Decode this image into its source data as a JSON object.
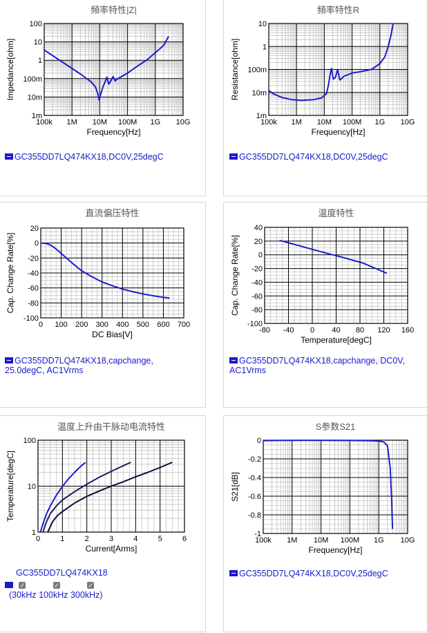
{
  "chart_data": [
    {
      "id": "impedance",
      "type": "line",
      "title": "頻率特性|Z|",
      "xlabel": "Frequency[Hz]",
      "ylabel": "Impedance[ohm]",
      "xscale": "log",
      "yscale": "log",
      "xlim": [
        100000,
        10000000000
      ],
      "ylim": [
        0.001,
        100
      ],
      "xticks": [
        [
          100000,
          "100k"
        ],
        [
          1000000,
          "1M"
        ],
        [
          10000000,
          "10M"
        ],
        [
          100000000,
          "100M"
        ],
        [
          1000000000,
          "1G"
        ],
        [
          10000000000,
          "10G"
        ]
      ],
      "yticks": [
        [
          0.001,
          "1m"
        ],
        [
          0.01,
          "10m"
        ],
        [
          0.1,
          "100m"
        ],
        [
          1,
          "1"
        ],
        [
          10,
          "10"
        ],
        [
          100,
          "100"
        ]
      ],
      "series": [
        {
          "color": "#1a1acc",
          "x": [
            100000,
            200000,
            500000,
            1000000,
            2000000,
            5000000,
            7000000,
            8500000,
            9500000,
            11000000,
            13000000,
            16000000,
            18000000,
            21000000,
            25000000,
            30000000,
            36000000,
            42000000,
            50000000,
            100000000,
            200000000,
            500000000,
            1000000000,
            2000000000,
            3000000000
          ],
          "y": [
            3.6,
            1.8,
            0.72,
            0.36,
            0.18,
            0.065,
            0.035,
            0.015,
            0.007,
            0.016,
            0.035,
            0.075,
            0.12,
            0.05,
            0.075,
            0.13,
            0.075,
            0.095,
            0.11,
            0.2,
            0.42,
            1.05,
            2.6,
            6.5,
            20
          ]
        }
      ],
      "legend": "GC355DD7LQ474KX18,DC0V,25degC"
    },
    {
      "id": "resistance",
      "type": "line",
      "title": "頻率特性R",
      "xlabel": "Frequency[Hz]",
      "ylabel": "Resistance[ohm]",
      "xscale": "log",
      "yscale": "log",
      "xlim": [
        100000,
        10000000000
      ],
      "ylim": [
        0.001,
        10
      ],
      "xticks": [
        [
          100000,
          "100k"
        ],
        [
          1000000,
          "1M"
        ],
        [
          10000000,
          "10M"
        ],
        [
          100000000,
          "100M"
        ],
        [
          1000000000,
          "1G"
        ],
        [
          10000000000,
          "10G"
        ]
      ],
      "yticks": [
        [
          0.001,
          "1m"
        ],
        [
          0.01,
          "10m"
        ],
        [
          0.1,
          "100m"
        ],
        [
          1,
          "1"
        ],
        [
          10,
          "10"
        ]
      ],
      "series": [
        {
          "color": "#1a1acc",
          "x": [
            100000,
            150000,
            300000,
            700000,
            1500000,
            4000000,
            8000000,
            12000000,
            14000000,
            16000000,
            18000000,
            21000000,
            25000000,
            30000000,
            36000000,
            42000000,
            50000000,
            100000000,
            200000000,
            500000000,
            1000000000,
            1500000000,
            2000000000,
            2500000000,
            3000000000
          ],
          "y": [
            0.012,
            0.0085,
            0.006,
            0.0048,
            0.0045,
            0.0048,
            0.0058,
            0.009,
            0.02,
            0.055,
            0.11,
            0.038,
            0.045,
            0.1,
            0.035,
            0.04,
            0.05,
            0.07,
            0.08,
            0.1,
            0.18,
            0.35,
            1.0,
            3.0,
            10
          ]
        }
      ],
      "legend": "GC355DD7LQ474KX18,DC0V,25degC"
    },
    {
      "id": "dcbias",
      "type": "line",
      "title": "直流偏压特性",
      "xlabel": "DC Bias[V]",
      "ylabel": "Cap. Change Rate[%]",
      "xscale": "linear",
      "yscale": "linear",
      "xlim": [
        0,
        700
      ],
      "ylim": [
        -100,
        20
      ],
      "xticks": [
        [
          0,
          "0"
        ],
        [
          100,
          "100"
        ],
        [
          200,
          "200"
        ],
        [
          300,
          "300"
        ],
        [
          400,
          "400"
        ],
        [
          500,
          "500"
        ],
        [
          600,
          "600"
        ],
        [
          700,
          "700"
        ]
      ],
      "yticks": [
        [
          -100,
          "-100"
        ],
        [
          -80,
          "-80"
        ],
        [
          -60,
          "-60"
        ],
        [
          -40,
          "-40"
        ],
        [
          -20,
          "-20"
        ],
        [
          0,
          "0"
        ],
        [
          20,
          "20"
        ]
      ],
      "series": [
        {
          "color": "#1a1acc",
          "x": [
            0,
            25,
            50,
            75,
            100,
            150,
            200,
            250,
            300,
            350,
            400,
            450,
            500,
            550,
            600,
            630
          ],
          "y": [
            0,
            -0.5,
            -3,
            -8,
            -14,
            -26,
            -37,
            -45,
            -52,
            -57,
            -61.5,
            -65,
            -68,
            -70.5,
            -72.5,
            -73.5
          ]
        }
      ],
      "legend": "GC355DD7LQ474KX18,capchange, 25.0degC, AC1Vrms"
    },
    {
      "id": "temperature",
      "type": "line",
      "title": "温度特性",
      "xlabel": "Temperature[degC]",
      "ylabel": "Cap. Change Rate[%]",
      "xscale": "linear",
      "yscale": "linear",
      "xlim": [
        -80,
        160
      ],
      "ylim": [
        -100,
        40
      ],
      "xticks": [
        [
          -80,
          "-80"
        ],
        [
          -40,
          "-40"
        ],
        [
          0,
          "0"
        ],
        [
          40,
          "40"
        ],
        [
          80,
          "80"
        ],
        [
          120,
          "120"
        ],
        [
          160,
          "160"
        ]
      ],
      "yticks": [
        [
          -100,
          "-100"
        ],
        [
          -80,
          "-80"
        ],
        [
          -60,
          "-60"
        ],
        [
          -40,
          "-40"
        ],
        [
          -20,
          "-20"
        ],
        [
          0,
          "0"
        ],
        [
          20,
          "20"
        ],
        [
          40,
          "40"
        ]
      ],
      "series": [
        {
          "color": "#1a1acc",
          "x": [
            -55,
            -25,
            0,
            25,
            50,
            85,
            125
          ],
          "y": [
            21,
            14,
            8,
            2,
            -3.5,
            -12,
            -27
          ]
        }
      ],
      "legend": "GC355DD7LQ474KX18,capchange, DC0V, AC1Vrms"
    },
    {
      "id": "heating",
      "type": "line",
      "title": "温度上升由干脉动电流特性",
      "xlabel": "Current[Arms]",
      "ylabel": "Temperature[degC]",
      "xscale": "linear",
      "yscale": "log",
      "xlim": [
        0,
        6
      ],
      "ylim": [
        1,
        100
      ],
      "xticks": [
        [
          0,
          "0"
        ],
        [
          1,
          "1"
        ],
        [
          2,
          "2"
        ],
        [
          3,
          "3"
        ],
        [
          4,
          "4"
        ],
        [
          5,
          "5"
        ],
        [
          6,
          "6"
        ]
      ],
      "yticks": [
        [
          1,
          "1"
        ],
        [
          10,
          "10"
        ],
        [
          100,
          "100"
        ]
      ],
      "series": [
        {
          "name": "30kHz",
          "color": "#1a1acc",
          "x": [
            0.1,
            0.2,
            0.35,
            0.5,
            0.75,
            1.0,
            1.25,
            1.5,
            1.75,
            1.95
          ],
          "y": [
            1.0,
            1.5,
            2.5,
            3.7,
            6.3,
            9.8,
            14.5,
            20,
            27,
            33
          ]
        },
        {
          "name": "100kHz",
          "color": "#1c1c66",
          "x": [
            0.2,
            0.35,
            0.5,
            0.75,
            1.0,
            1.5,
            2.0,
            2.5,
            3.0,
            3.5,
            3.8
          ],
          "y": [
            1.0,
            1.7,
            2.5,
            3.7,
            5.0,
            7.6,
            11,
            15.5,
            21,
            28,
            33
          ]
        },
        {
          "name": "300kHz",
          "color": "#0c0c38",
          "x": [
            0.4,
            0.6,
            0.8,
            1.0,
            1.5,
            2.0,
            2.5,
            3.0,
            3.5,
            4.0,
            4.5,
            5.0,
            5.5
          ],
          "y": [
            1.0,
            1.7,
            2.3,
            2.8,
            4.3,
            6.0,
            7.8,
            10,
            12.5,
            16,
            20,
            25.5,
            33
          ]
        }
      ],
      "legend": "GC355DD7LQ474KX18",
      "checkbox_labels": [
        "30kHz",
        "100kHz",
        "300kHz"
      ]
    },
    {
      "id": "s21",
      "type": "line",
      "title": "S参数S21",
      "xlabel": "Frequency[Hz]",
      "ylabel": "S21[dB]",
      "xscale": "log",
      "yscale": "linear",
      "xlim": [
        100000,
        10000000000
      ],
      "ylim": [
        -1,
        0
      ],
      "xticks": [
        [
          100000,
          "100k"
        ],
        [
          1000000,
          "1M"
        ],
        [
          10000000,
          "10M"
        ],
        [
          100000000,
          "100M"
        ],
        [
          1000000000,
          "1G"
        ],
        [
          10000000000,
          "10G"
        ]
      ],
      "yticks": [
        [
          -1,
          "-1"
        ],
        [
          -0.8,
          "-0.8"
        ],
        [
          -0.6,
          "-0.6"
        ],
        [
          -0.4,
          "-0.4"
        ],
        [
          -0.2,
          "-0.2"
        ],
        [
          0,
          "0"
        ]
      ],
      "series": [
        {
          "color": "#1a1acc",
          "x": [
            100000,
            300000,
            1000000,
            10000000,
            100000000,
            500000000,
            1000000000,
            1500000000,
            2000000000,
            2500000000,
            2800000000,
            3000000000
          ],
          "y": [
            -0.005,
            -0.003,
            -0.002,
            -0.002,
            -0.003,
            -0.006,
            -0.01,
            -0.02,
            -0.06,
            -0.3,
            -0.65,
            -0.95
          ]
        }
      ],
      "legend": "GC355DD7LQ474KX18,DC0V,25degC"
    }
  ]
}
